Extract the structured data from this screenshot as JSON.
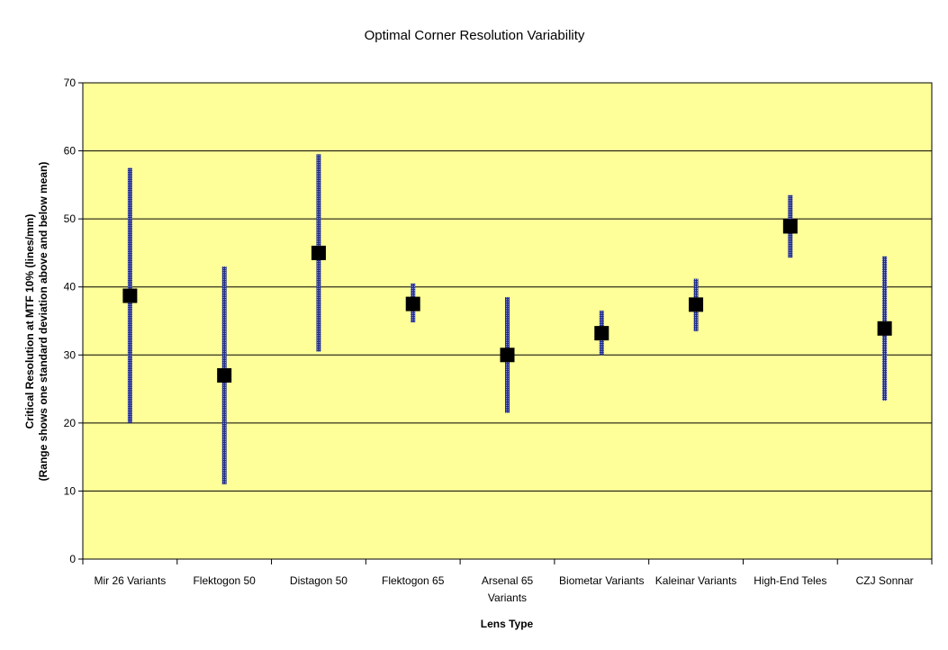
{
  "chart_data": {
    "type": "scatter",
    "title": "Optimal Corner Resolution Variability",
    "xlabel": "Lens Type",
    "ylabel": "Critical Resolution at MTF 10% (lines/mm)",
    "ylabel2": "(Range shows one standard deviation above and below mean)",
    "ylim": [
      0,
      70
    ],
    "yticks": [
      0,
      10,
      20,
      30,
      40,
      50,
      60,
      70
    ],
    "grid": true,
    "categories": [
      [
        "Mir 26 Variants"
      ],
      [
        "Flektogon 50"
      ],
      [
        "Distagon 50"
      ],
      [
        "Flektogon 65"
      ],
      [
        "Arsenal 65",
        "Variants"
      ],
      [
        "Biometar Variants"
      ],
      [
        "Kaleinar Variants"
      ],
      [
        "High-End Teles"
      ],
      [
        "CZJ Sonnar"
      ]
    ],
    "series": [
      {
        "mean": [
          38.7,
          27.0,
          45.0,
          37.5,
          30.0,
          33.2,
          37.4,
          48.9,
          33.9
        ]
      },
      {
        "high": [
          57.5,
          43.0,
          59.5,
          40.5,
          38.5,
          36.5,
          41.2,
          53.5,
          44.5
        ]
      },
      {
        "low": [
          20.0,
          11.0,
          30.5,
          34.8,
          21.5,
          30.0,
          33.5,
          44.3,
          23.3
        ]
      }
    ],
    "colors": {
      "plot_background": "#FFFF99",
      "marker": "#000000",
      "range_bar": "#1F2B8A"
    }
  }
}
